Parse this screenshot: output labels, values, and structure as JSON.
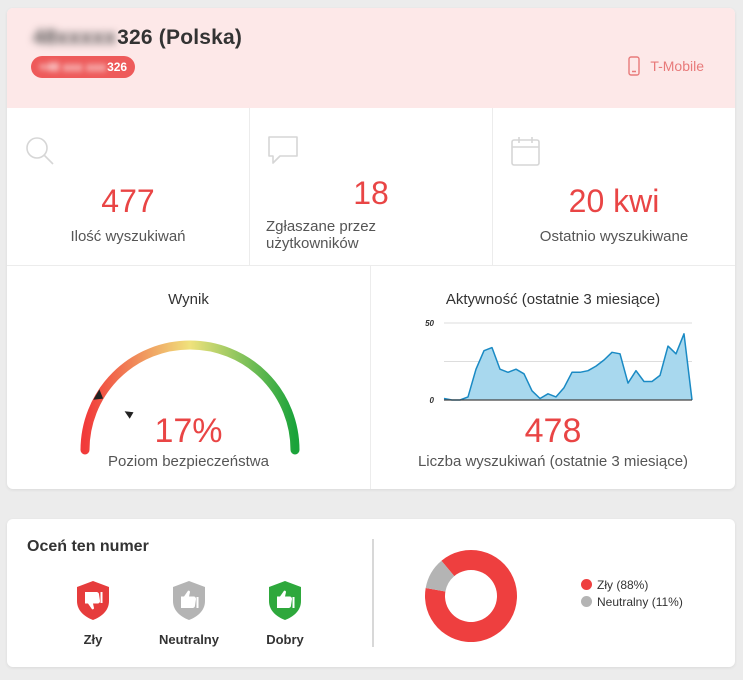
{
  "header": {
    "number_hidden": "48xxxxx",
    "number_suffix": "326",
    "country": "(Polska)",
    "phone_hidden": "+48 xxx xxx ",
    "phone_suffix": "326",
    "carrier": "T-Mobile",
    "carrier_icon": "phone-icon"
  },
  "stats": [
    {
      "value": "477",
      "label": "Ilość wyszukiwań",
      "icon": "search-icon"
    },
    {
      "value": "18",
      "label": "Zgłaszane przez użytkowników",
      "icon": "comment-icon"
    },
    {
      "value": "20 kwi",
      "label": "Ostatnio wyszukiwane",
      "icon": "calendar-icon"
    }
  ],
  "score": {
    "title": "Wynik",
    "value": "17%",
    "level": 0.17,
    "label": "Poziom bezpieczeństwa"
  },
  "activity": {
    "title": "Aktywność (ostatnie 3 miesiące)",
    "count": "478",
    "label": "Liczba wyszukiwań (ostatnie 3 miesiące)"
  },
  "chart_data": {
    "type": "area",
    "yticks": [
      "50",
      "0"
    ],
    "ylim": [
      0,
      50
    ],
    "grid": true,
    "color": "#1a8ac4",
    "fill": "#a8d8ee",
    "values": [
      1,
      0,
      0,
      2,
      20,
      32,
      34,
      20,
      18,
      20,
      17,
      6,
      1,
      4,
      2,
      8,
      18,
      18,
      19,
      22,
      26,
      31,
      30,
      11,
      19,
      12,
      12,
      16,
      35,
      30,
      43,
      0
    ]
  },
  "rating": {
    "title": "Oceń ten numer",
    "buttons": [
      {
        "label": "Zły",
        "color": "#e63c3c",
        "icon": "thumbs-down-icon"
      },
      {
        "label": "Neutralny",
        "color": "#b4b4b4",
        "icon": "thumbs-up-icon"
      },
      {
        "label": "Dobry",
        "color": "#2ea83c",
        "icon": "thumbs-up-icon"
      }
    ]
  },
  "donut": {
    "slices": [
      {
        "label": "Zły (88%)",
        "value": 88,
        "color": "#ee3f3f"
      },
      {
        "label": "Neutralny (11%)",
        "value": 11,
        "color": "#b4b4b4"
      }
    ]
  }
}
